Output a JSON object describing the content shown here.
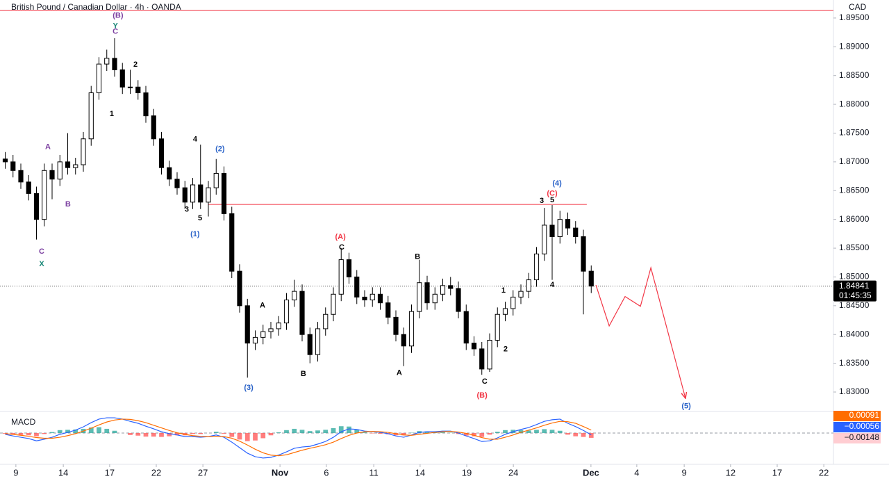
{
  "chart_data": {
    "type": "candlestick",
    "title": "British Pound / Canadian Dollar · 4h · OANDA",
    "currency": "CAD",
    "up_color": "#ffffff",
    "down_color": "#000000",
    "wick_color": "#000000",
    "x": [
      2,
      5,
      8,
      11,
      14,
      17,
      20,
      23,
      26,
      29,
      32,
      35,
      38,
      41,
      44,
      47,
      50,
      53,
      56,
      59,
      62,
      65,
      68,
      71,
      74,
      77,
      80,
      83,
      86,
      89,
      92,
      95,
      98,
      101,
      104,
      107,
      110,
      113,
      116,
      119,
      122,
      125,
      128,
      131,
      134,
      137,
      140,
      143,
      146,
      149,
      152,
      155,
      158,
      161,
      164,
      167,
      170,
      173,
      176,
      179,
      182,
      185,
      188,
      191,
      194,
      197,
      200,
      203,
      206,
      209,
      212,
      215,
      218,
      221,
      224,
      227
    ],
    "open": [
      1.8705,
      1.87,
      1.8685,
      1.8665,
      1.8645,
      1.86,
      1.8685,
      1.867,
      1.87,
      1.869,
      1.8695,
      1.874,
      1.882,
      1.887,
      1.888,
      1.886,
      1.883,
      1.883,
      1.882,
      1.878,
      1.874,
      1.869,
      1.867,
      1.8655,
      1.863,
      1.866,
      1.863,
      1.8655,
      1.868,
      1.861,
      1.851,
      1.845,
      1.8385,
      1.8395,
      1.8405,
      1.841,
      1.842,
      1.846,
      1.8475,
      1.84,
      1.8365,
      1.841,
      1.8435,
      1.847,
      1.853,
      1.85,
      1.8465,
      1.846,
      1.847,
      1.8455,
      1.843,
      1.84,
      1.838,
      1.844,
      1.849,
      1.8455,
      1.847,
      1.8485,
      1.848,
      1.844,
      1.8385,
      1.8375,
      1.834,
      1.839,
      1.8435,
      1.8445,
      1.8465,
      1.8475,
      1.8495,
      1.854,
      1.859,
      1.857,
      1.86,
      1.8585,
      1.857,
      1.851
    ],
    "high": [
      1.8717,
      1.8712,
      1.8697,
      1.8677,
      1.8657,
      1.8697,
      1.8697,
      1.8712,
      1.875,
      1.8707,
      1.8752,
      1.8832,
      1.8882,
      1.8895,
      1.8915,
      1.8872,
      1.886,
      1.8842,
      1.8832,
      1.8792,
      1.8752,
      1.8702,
      1.8682,
      1.8667,
      1.8672,
      1.873,
      1.8667,
      1.8705,
      1.8692,
      1.8622,
      1.8522,
      1.8462,
      1.8407,
      1.8417,
      1.8422,
      1.8432,
      1.8472,
      1.8495,
      1.8487,
      1.8412,
      1.8422,
      1.8447,
      1.8482,
      1.855,
      1.8542,
      1.8512,
      1.8477,
      1.8482,
      1.8482,
      1.8467,
      1.8442,
      1.8412,
      1.8452,
      1.853,
      1.8502,
      1.8482,
      1.8497,
      1.85,
      1.8492,
      1.8452,
      1.8397,
      1.8387,
      1.8402,
      1.8447,
      1.8457,
      1.8477,
      1.8487,
      1.8507,
      1.8552,
      1.862,
      1.8625,
      1.8615,
      1.8612,
      1.8597,
      1.8582,
      1.852
    ],
    "low": [
      1.8688,
      1.8673,
      1.8653,
      1.8633,
      1.8565,
      1.8588,
      1.8635,
      1.8658,
      1.8678,
      1.8678,
      1.8683,
      1.8728,
      1.8808,
      1.8858,
      1.8848,
      1.8818,
      1.8818,
      1.8808,
      1.8768,
      1.8728,
      1.8678,
      1.8658,
      1.8643,
      1.8618,
      1.8618,
      1.8618,
      1.8605,
      1.8643,
      1.8598,
      1.8498,
      1.8438,
      1.8325,
      1.8373,
      1.8383,
      1.8393,
      1.8398,
      1.8408,
      1.8448,
      1.8388,
      1.835,
      1.8353,
      1.8398,
      1.8423,
      1.8458,
      1.8488,
      1.8453,
      1.8448,
      1.8448,
      1.8443,
      1.8418,
      1.8388,
      1.8345,
      1.8368,
      1.8428,
      1.8443,
      1.8443,
      1.8458,
      1.8468,
      1.8428,
      1.8373,
      1.8363,
      1.833,
      1.8335,
      1.8378,
      1.8423,
      1.8433,
      1.8453,
      1.8463,
      1.8483,
      1.8528,
      1.8495,
      1.8558,
      1.8573,
      1.8558,
      1.8435,
      1.8472
    ],
    "close": [
      1.87,
      1.8685,
      1.8665,
      1.8645,
      1.86,
      1.8685,
      1.867,
      1.87,
      1.869,
      1.8695,
      1.874,
      1.882,
      1.887,
      1.888,
      1.886,
      1.883,
      1.883,
      1.882,
      1.878,
      1.874,
      1.869,
      1.867,
      1.8655,
      1.863,
      1.866,
      1.863,
      1.8655,
      1.868,
      1.861,
      1.851,
      1.845,
      1.8385,
      1.8395,
      1.8405,
      1.841,
      1.842,
      1.846,
      1.8475,
      1.84,
      1.8365,
      1.841,
      1.8435,
      1.847,
      1.853,
      1.85,
      1.8465,
      1.846,
      1.847,
      1.8455,
      1.843,
      1.84,
      1.838,
      1.844,
      1.849,
      1.8455,
      1.847,
      1.8485,
      1.848,
      1.844,
      1.8385,
      1.8375,
      1.834,
      1.839,
      1.8435,
      1.8445,
      1.8465,
      1.8475,
      1.8495,
      1.854,
      1.859,
      1.857,
      1.86,
      1.8585,
      1.857,
      1.851,
      1.84841
    ],
    "xlim": [
      0,
      320
    ],
    "xticks": [
      {
        "value": 6.1,
        "label": "9"
      },
      {
        "value": 24.3,
        "label": "14"
      },
      {
        "value": 42.1,
        "label": "17"
      },
      {
        "value": 60,
        "label": "22"
      },
      {
        "value": 77.9,
        "label": "27"
      },
      {
        "value": 107.5,
        "label": "Nov"
      },
      {
        "value": 125.3,
        "label": "6"
      },
      {
        "value": 143.5,
        "label": "11"
      },
      {
        "value": 161.3,
        "label": "14"
      },
      {
        "value": 179.2,
        "label": "19"
      },
      {
        "value": 197.1,
        "label": "24"
      },
      {
        "value": 226.9,
        "label": "Dec"
      },
      {
        "value": 244.5,
        "label": "4"
      },
      {
        "value": 262.7,
        "label": "9"
      },
      {
        "value": 280.5,
        "label": "12"
      },
      {
        "value": 298.4,
        "label": "17"
      },
      {
        "value": 316.3,
        "label": "22"
      }
    ],
    "ylim": [
      1.82686,
      1.89813
    ],
    "yticks": [
      {
        "value": 1.83,
        "label": "1.83000"
      },
      {
        "value": 1.835,
        "label": "1.83500"
      },
      {
        "value": 1.84,
        "label": "1.84000"
      },
      {
        "value": 1.845,
        "label": "1.84500"
      },
      {
        "value": 1.85,
        "label": "1.85000"
      },
      {
        "value": 1.855,
        "label": "1.85500"
      },
      {
        "value": 1.86,
        "label": "1.86000"
      },
      {
        "value": 1.865,
        "label": "1.86500"
      },
      {
        "value": 1.87,
        "label": "1.87000"
      },
      {
        "value": 1.875,
        "label": "1.87500"
      },
      {
        "value": 1.88,
        "label": "1.88000"
      },
      {
        "value": 1.885,
        "label": "1.88500"
      },
      {
        "value": 1.89,
        "label": "1.89000"
      },
      {
        "value": 1.895,
        "label": "1.89500"
      }
    ],
    "grid": false,
    "last_price": 1.84841,
    "countdown": "01:45:35",
    "levels": [
      {
        "y": 1.8963,
        "x0": 0,
        "x1": 320,
        "color": "#f23645"
      },
      {
        "y": 1.8626,
        "x0": 80,
        "x1": 225.3,
        "color": "#f23645"
      }
    ],
    "projection": {
      "color": "#f23645",
      "x": [
        228.8,
        233.9,
        240,
        245.9,
        249.9,
        263.2
      ],
      "y": [
        1.8486,
        1.8415,
        1.8466,
        1.8449,
        1.8516,
        1.8289
      ]
    },
    "annotations": [
      {
        "text": "(B)",
        "x": 45.3,
        "y": 1.8954,
        "color": "#7b3fa0"
      },
      {
        "text": "Y",
        "x": 44.3,
        "y": 1.8936,
        "color": "#1e8a7a"
      },
      {
        "text": "C",
        "x": 44.3,
        "y": 1.8926,
        "color": "#7b3fa0"
      },
      {
        "text": "2",
        "x": 52,
        "y": 1.8869,
        "color": "#000000"
      },
      {
        "text": "1",
        "x": 42.9,
        "y": 1.8783,
        "color": "#000000"
      },
      {
        "text": "A",
        "x": 18.4,
        "y": 1.8726,
        "color": "#7b3fa0"
      },
      {
        "text": "B",
        "x": 26.1,
        "y": 1.8626,
        "color": "#7b3fa0"
      },
      {
        "text": "C",
        "x": 16,
        "y": 1.8544,
        "color": "#7b3fa0"
      },
      {
        "text": "X",
        "x": 16,
        "y": 1.8522,
        "color": "#1e8a7a"
      },
      {
        "text": "4",
        "x": 74.9,
        "y": 1.8739,
        "color": "#000000"
      },
      {
        "text": "(2)",
        "x": 84.5,
        "y": 1.8722,
        "color": "#2962c8"
      },
      {
        "text": "3",
        "x": 71.7,
        "y": 1.8617,
        "color": "#000000"
      },
      {
        "text": "5",
        "x": 76.8,
        "y": 1.8602,
        "color": "#000000"
      },
      {
        "text": "(1)",
        "x": 74.9,
        "y": 1.8574,
        "color": "#2962c8"
      },
      {
        "text": "(3)",
        "x": 95.5,
        "y": 1.8307,
        "color": "#2962c8"
      },
      {
        "text": "A",
        "x": 100.8,
        "y": 1.845,
        "color": "#000000"
      },
      {
        "text": "B",
        "x": 116.5,
        "y": 1.8331,
        "color": "#000000"
      },
      {
        "text": "(A)",
        "x": 130.7,
        "y": 1.8569,
        "color": "#f23645"
      },
      {
        "text": "C",
        "x": 131.2,
        "y": 1.8551,
        "color": "#000000"
      },
      {
        "text": "A",
        "x": 153.3,
        "y": 1.8333,
        "color": "#000000"
      },
      {
        "text": "B",
        "x": 160.3,
        "y": 1.8535,
        "color": "#000000"
      },
      {
        "text": "(B)",
        "x": 185.1,
        "y": 1.8294,
        "color": "#f23645"
      },
      {
        "text": "C",
        "x": 186.1,
        "y": 1.8318,
        "color": "#000000"
      },
      {
        "text": "1",
        "x": 193.3,
        "y": 1.8476,
        "color": "#000000"
      },
      {
        "text": "2",
        "x": 194.1,
        "y": 1.8374,
        "color": "#000000"
      },
      {
        "text": "3",
        "x": 208,
        "y": 1.8632,
        "color": "#000000"
      },
      {
        "text": "5",
        "x": 212,
        "y": 1.8633,
        "color": "#000000"
      },
      {
        "text": "(C)",
        "x": 212,
        "y": 1.8645,
        "color": "#f23645"
      },
      {
        "text": "(4)",
        "x": 213.9,
        "y": 1.8662,
        "color": "#2962c8"
      },
      {
        "text": "4",
        "x": 212,
        "y": 1.8486,
        "color": "#000000"
      },
      {
        "text": "(5)",
        "x": 263.5,
        "y": 1.8275,
        "color": "#2962c8"
      }
    ],
    "macd": {
      "title": "MACD",
      "ylim": [
        -0.009,
        0.006
      ],
      "macd": {
        "color": "#2962ff",
        "values": [
          -0.0004,
          -0.0009,
          -0.0013,
          -0.0017,
          -0.0024,
          -0.0019,
          -0.0013,
          -0.0004,
          0.0002,
          0.0009,
          0.0019,
          0.0032,
          0.0043,
          0.0047,
          0.0047,
          0.0043,
          0.0036,
          0.003,
          0.0021,
          0.0013,
          0.0004,
          -0.0002,
          -0.0006,
          -0.0011,
          -0.0011,
          -0.0013,
          -0.0011,
          -0.0006,
          -0.0013,
          -0.0028,
          -0.0045,
          -0.0062,
          -0.0073,
          -0.0077,
          -0.0075,
          -0.0068,
          -0.0058,
          -0.0047,
          -0.0043,
          -0.0041,
          -0.0034,
          -0.0026,
          -0.0013,
          0.0004,
          0.0013,
          0.0011,
          0.0006,
          0.0004,
          0.0002,
          -0.0002,
          -0.0009,
          -0.0013,
          -0.0006,
          0.0002,
          0.0004,
          0.0004,
          0.0006,
          0.0006,
          0,
          -0.0009,
          -0.0017,
          -0.0026,
          -0.0024,
          -0.0015,
          -0.0004,
          0.0004,
          0.0011,
          0.0017,
          0.0026,
          0.0036,
          0.0041,
          0.0043,
          0.003,
          0.002,
          0.0008,
          -0.00056
        ],
        "last": {
          "value": -0.00056,
          "label": "−0.00056"
        }
      },
      "signal": {
        "color": "#ff6d00",
        "values": [
          -0.0002,
          -0.0004,
          -0.0007,
          -0.001,
          -0.0014,
          -0.0016,
          -0.0016,
          -0.0013,
          -0.0008,
          -0.0002,
          0.0006,
          0.0015,
          0.0025,
          0.0034,
          0.004,
          0.0043,
          0.0042,
          0.0038,
          0.0032,
          0.0024,
          0.0016,
          0.0008,
          0.0001,
          -0.0004,
          -0.0008,
          -0.001,
          -0.0011,
          -0.001,
          -0.0011,
          -0.0016,
          -0.0025,
          -0.0037,
          -0.005,
          -0.0061,
          -0.0068,
          -0.007,
          -0.0067,
          -0.006,
          -0.0053,
          -0.0047,
          -0.0042,
          -0.0036,
          -0.0028,
          -0.0017,
          -0.0007,
          0,
          0.0004,
          0.0005,
          0.0004,
          0.0002,
          -0.0002,
          -0.0006,
          -0.0007,
          -0.0004,
          -0.0001,
          0.0002,
          0.0004,
          0.0005,
          0.0003,
          -0.0001,
          -0.0007,
          -0.0014,
          -0.0019,
          -0.0019,
          -0.0013,
          -0.0006,
          0.0002,
          0.0009,
          0.0016,
          0.0024,
          0.0031,
          0.0036,
          0.0035,
          0.003,
          0.002,
          0.00091
        ],
        "last": 0.00091
      },
      "histogram": {
        "up_color": "#26a69a",
        "down_color": "#ff5252",
        "label_color": "#ffcdd2",
        "values": [
          -0.0002,
          -0.0005,
          -0.0006,
          -0.0007,
          -0.001,
          -0.0003,
          0.0003,
          0.0009,
          0.001,
          0.0011,
          0.0013,
          0.0017,
          0.0018,
          0.0013,
          0.0007,
          0,
          -0.0006,
          -0.0008,
          -0.0011,
          -0.0011,
          -0.0012,
          -0.001,
          -0.0007,
          -0.0007,
          -0.0003,
          -0.0003,
          0,
          0.0004,
          -0.0002,
          -0.0012,
          -0.002,
          -0.0025,
          -0.0023,
          -0.0016,
          -0.0007,
          0.0002,
          0.0009,
          0.0013,
          0.001,
          0.0006,
          0.0008,
          0.001,
          0.0015,
          0.0021,
          0.002,
          0.0011,
          0.0002,
          -0.0001,
          -0.0002,
          -0.0004,
          -0.0007,
          -0.0007,
          0.0001,
          0.0006,
          0.0005,
          0.0002,
          0.0002,
          0.0001,
          -0.0003,
          -0.0008,
          -0.001,
          -0.0012,
          -0.0005,
          0.0004,
          0.0009,
          0.001,
          0.0009,
          0.0008,
          0.001,
          0.0012,
          0.001,
          0.0007,
          -0.0005,
          -0.001,
          -0.0012,
          -0.00148
        ],
        "last": {
          "value": -0.00148,
          "label": "−0.00148"
        }
      }
    }
  }
}
